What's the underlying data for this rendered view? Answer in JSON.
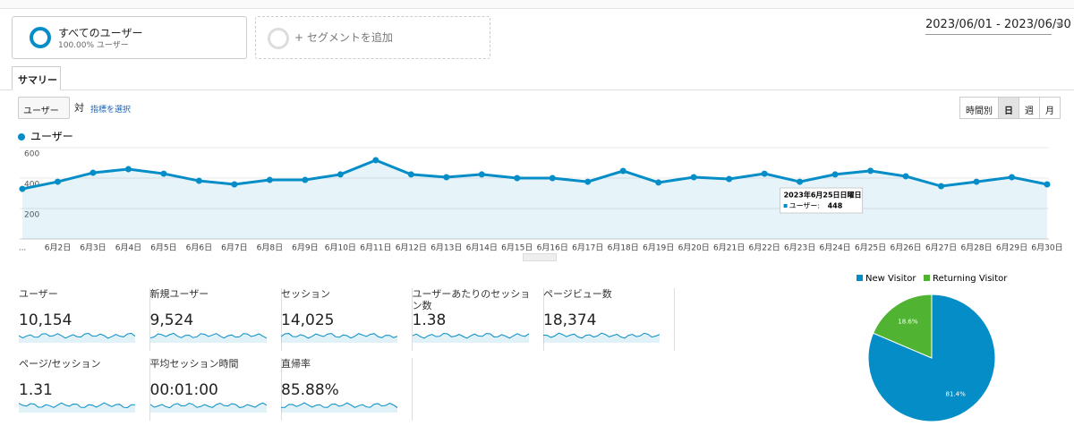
{
  "header": {
    "segment": {
      "name": "すべてのユーザー",
      "share": "100.00% ユーザー"
    },
    "add_segment": "+ セグメントを追加",
    "date_range": "2023/06/01 - 2023/06/30"
  },
  "tabs": [
    "サマリー"
  ],
  "controls": {
    "metric": "ユーザー",
    "vs": "対",
    "select_metric": "指標を選択",
    "periods": [
      "時間別",
      "日",
      "週",
      "月"
    ],
    "active_period": 1
  },
  "tooltip": {
    "date": "2023年6月25日日曜日",
    "label": "ユーザー:"
  },
  "chart_data": [
    {
      "type": "line",
      "x": [
        "...",
        "6月2日",
        "6月3日",
        "6月4日",
        "6月5日",
        "6月6日",
        "6月7日",
        "6月8日",
        "6月9日",
        "6月10日",
        "6月11日",
        "6月12日",
        "6月13日",
        "6月14日",
        "6月15日",
        "6月16日",
        "6月17日",
        "6月18日",
        "6月19日",
        "6月20日",
        "6月21日",
        "6月22日",
        "6月23日",
        "6月24日",
        "6月25日",
        "6月26日",
        "6月27日",
        "6月28日",
        "6月29日",
        "6月30日"
      ],
      "series": [
        {
          "name": "ユーザー",
          "color": "#058dc7",
          "values": [
            329,
            376,
            435,
            459,
            429,
            382,
            359,
            388,
            388,
            424,
            518,
            424,
            406,
            424,
            400,
            400,
            376,
            447,
            371,
            406,
            394,
            429,
            376,
            424,
            448,
            412,
            347,
            376,
            406,
            359
          ]
        }
      ],
      "ylim": [
        0,
        600
      ],
      "yticks": [
        200,
        400,
        600
      ],
      "grid": true
    },
    {
      "type": "pie",
      "categories": [
        "New Visitor",
        "Returning Visitor"
      ],
      "values": [
        81.4,
        18.6
      ],
      "value_labels": [
        "81.4%",
        "18.6%"
      ],
      "colors": [
        "#058dc7",
        "#50b432"
      ]
    }
  ],
  "metrics": [
    {
      "label": "ユーザー",
      "value": "10,154"
    },
    {
      "label": "新規ユーザー",
      "value": "9,524"
    },
    {
      "label": "セッション",
      "value": "14,025"
    },
    {
      "label": "ユーザーあたりのセッション数",
      "value": "1.38"
    },
    {
      "label": "ページビュー数",
      "value": "18,374"
    },
    {
      "label": "ページ/セッション",
      "value": "1.31"
    },
    {
      "label": "平均セッション時間",
      "value": "00:01:00"
    },
    {
      "label": "直帰率",
      "value": "85.88%"
    }
  ]
}
